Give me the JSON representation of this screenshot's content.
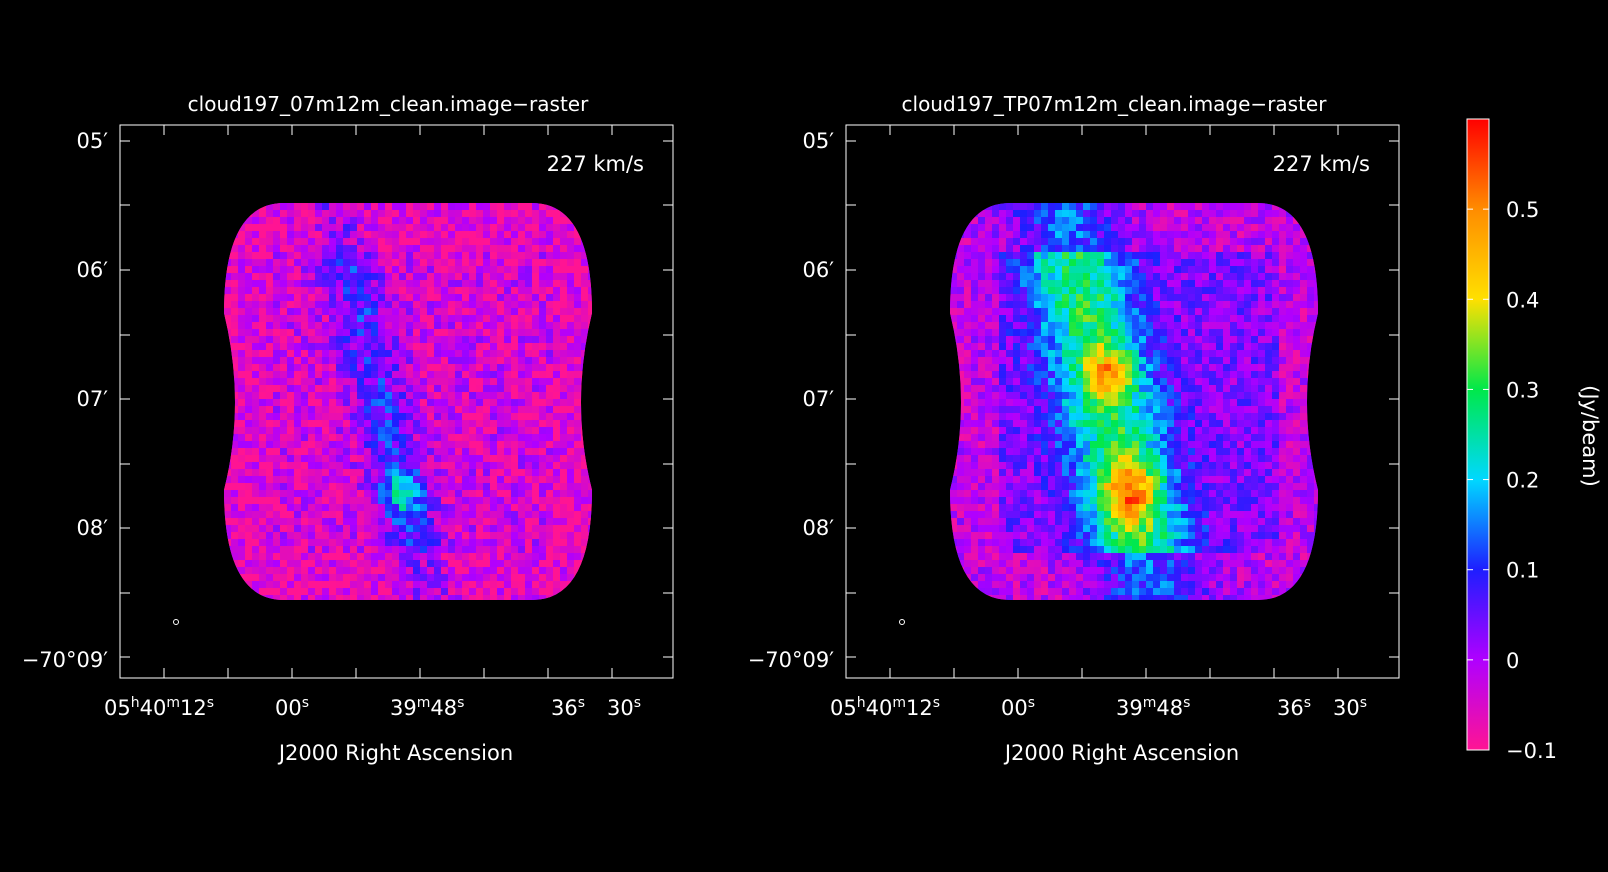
{
  "chart_data": {
    "type": "heatmap",
    "panels": [
      {
        "title": "cloud197_07m12m_clean.image−raster",
        "annotation": "227 km/s",
        "xlabel": "J2000 Right Ascension",
        "xticks": [
          {
            "main": "05",
            "sup1": "h",
            "mid": "40",
            "sup2": "m",
            "end": "12",
            "sup3": "s"
          },
          {
            "main": "00",
            "sup1": "s"
          },
          {
            "main": "39",
            "sup1": "m",
            "mid": "48",
            "sup2": "s"
          },
          {
            "main": "36",
            "sup1": "s"
          },
          {
            "main": "30",
            "sup1": "s"
          }
        ],
        "yticks": [
          "05′",
          "06′",
          "07′",
          "08′",
          "−70°09′"
        ],
        "emission": "weak"
      },
      {
        "title": "cloud197_TP07m12m_clean.image−raster",
        "annotation": "227 km/s",
        "xlabel": "J2000 Right Ascension",
        "xticks": [
          {
            "main": "05",
            "sup1": "h",
            "mid": "40",
            "sup2": "m",
            "end": "12",
            "sup3": "s"
          },
          {
            "main": "00",
            "sup1": "s"
          },
          {
            "main": "39",
            "sup1": "m",
            "mid": "48",
            "sup2": "s"
          },
          {
            "main": "36",
            "sup1": "s"
          },
          {
            "main": "30",
            "sup1": "s"
          }
        ],
        "yticks": [
          "05′",
          "06′",
          "07′",
          "08′",
          "−70°09′"
        ],
        "emission": "strong"
      }
    ],
    "colorbar": {
      "label": "(Jy/beam)",
      "range": [
        -0.1,
        0.6
      ],
      "ticks": [
        {
          "value": 0.5,
          "label": "0.5"
        },
        {
          "value": 0.4,
          "label": "0.4"
        },
        {
          "value": 0.3,
          "label": "0.3"
        },
        {
          "value": 0.2,
          "label": "0.2"
        },
        {
          "value": 0.1,
          "label": "0.1"
        },
        {
          "value": 0.0,
          "label": "0"
        },
        {
          "value": -0.1,
          "label": "−0.1"
        }
      ],
      "colors": [
        "#ff1493",
        "#b000ff",
        "#1e1eff",
        "#00d8ff",
        "#00e84a",
        "#ffe000",
        "#ff8c00",
        "#ff0000"
      ]
    }
  }
}
